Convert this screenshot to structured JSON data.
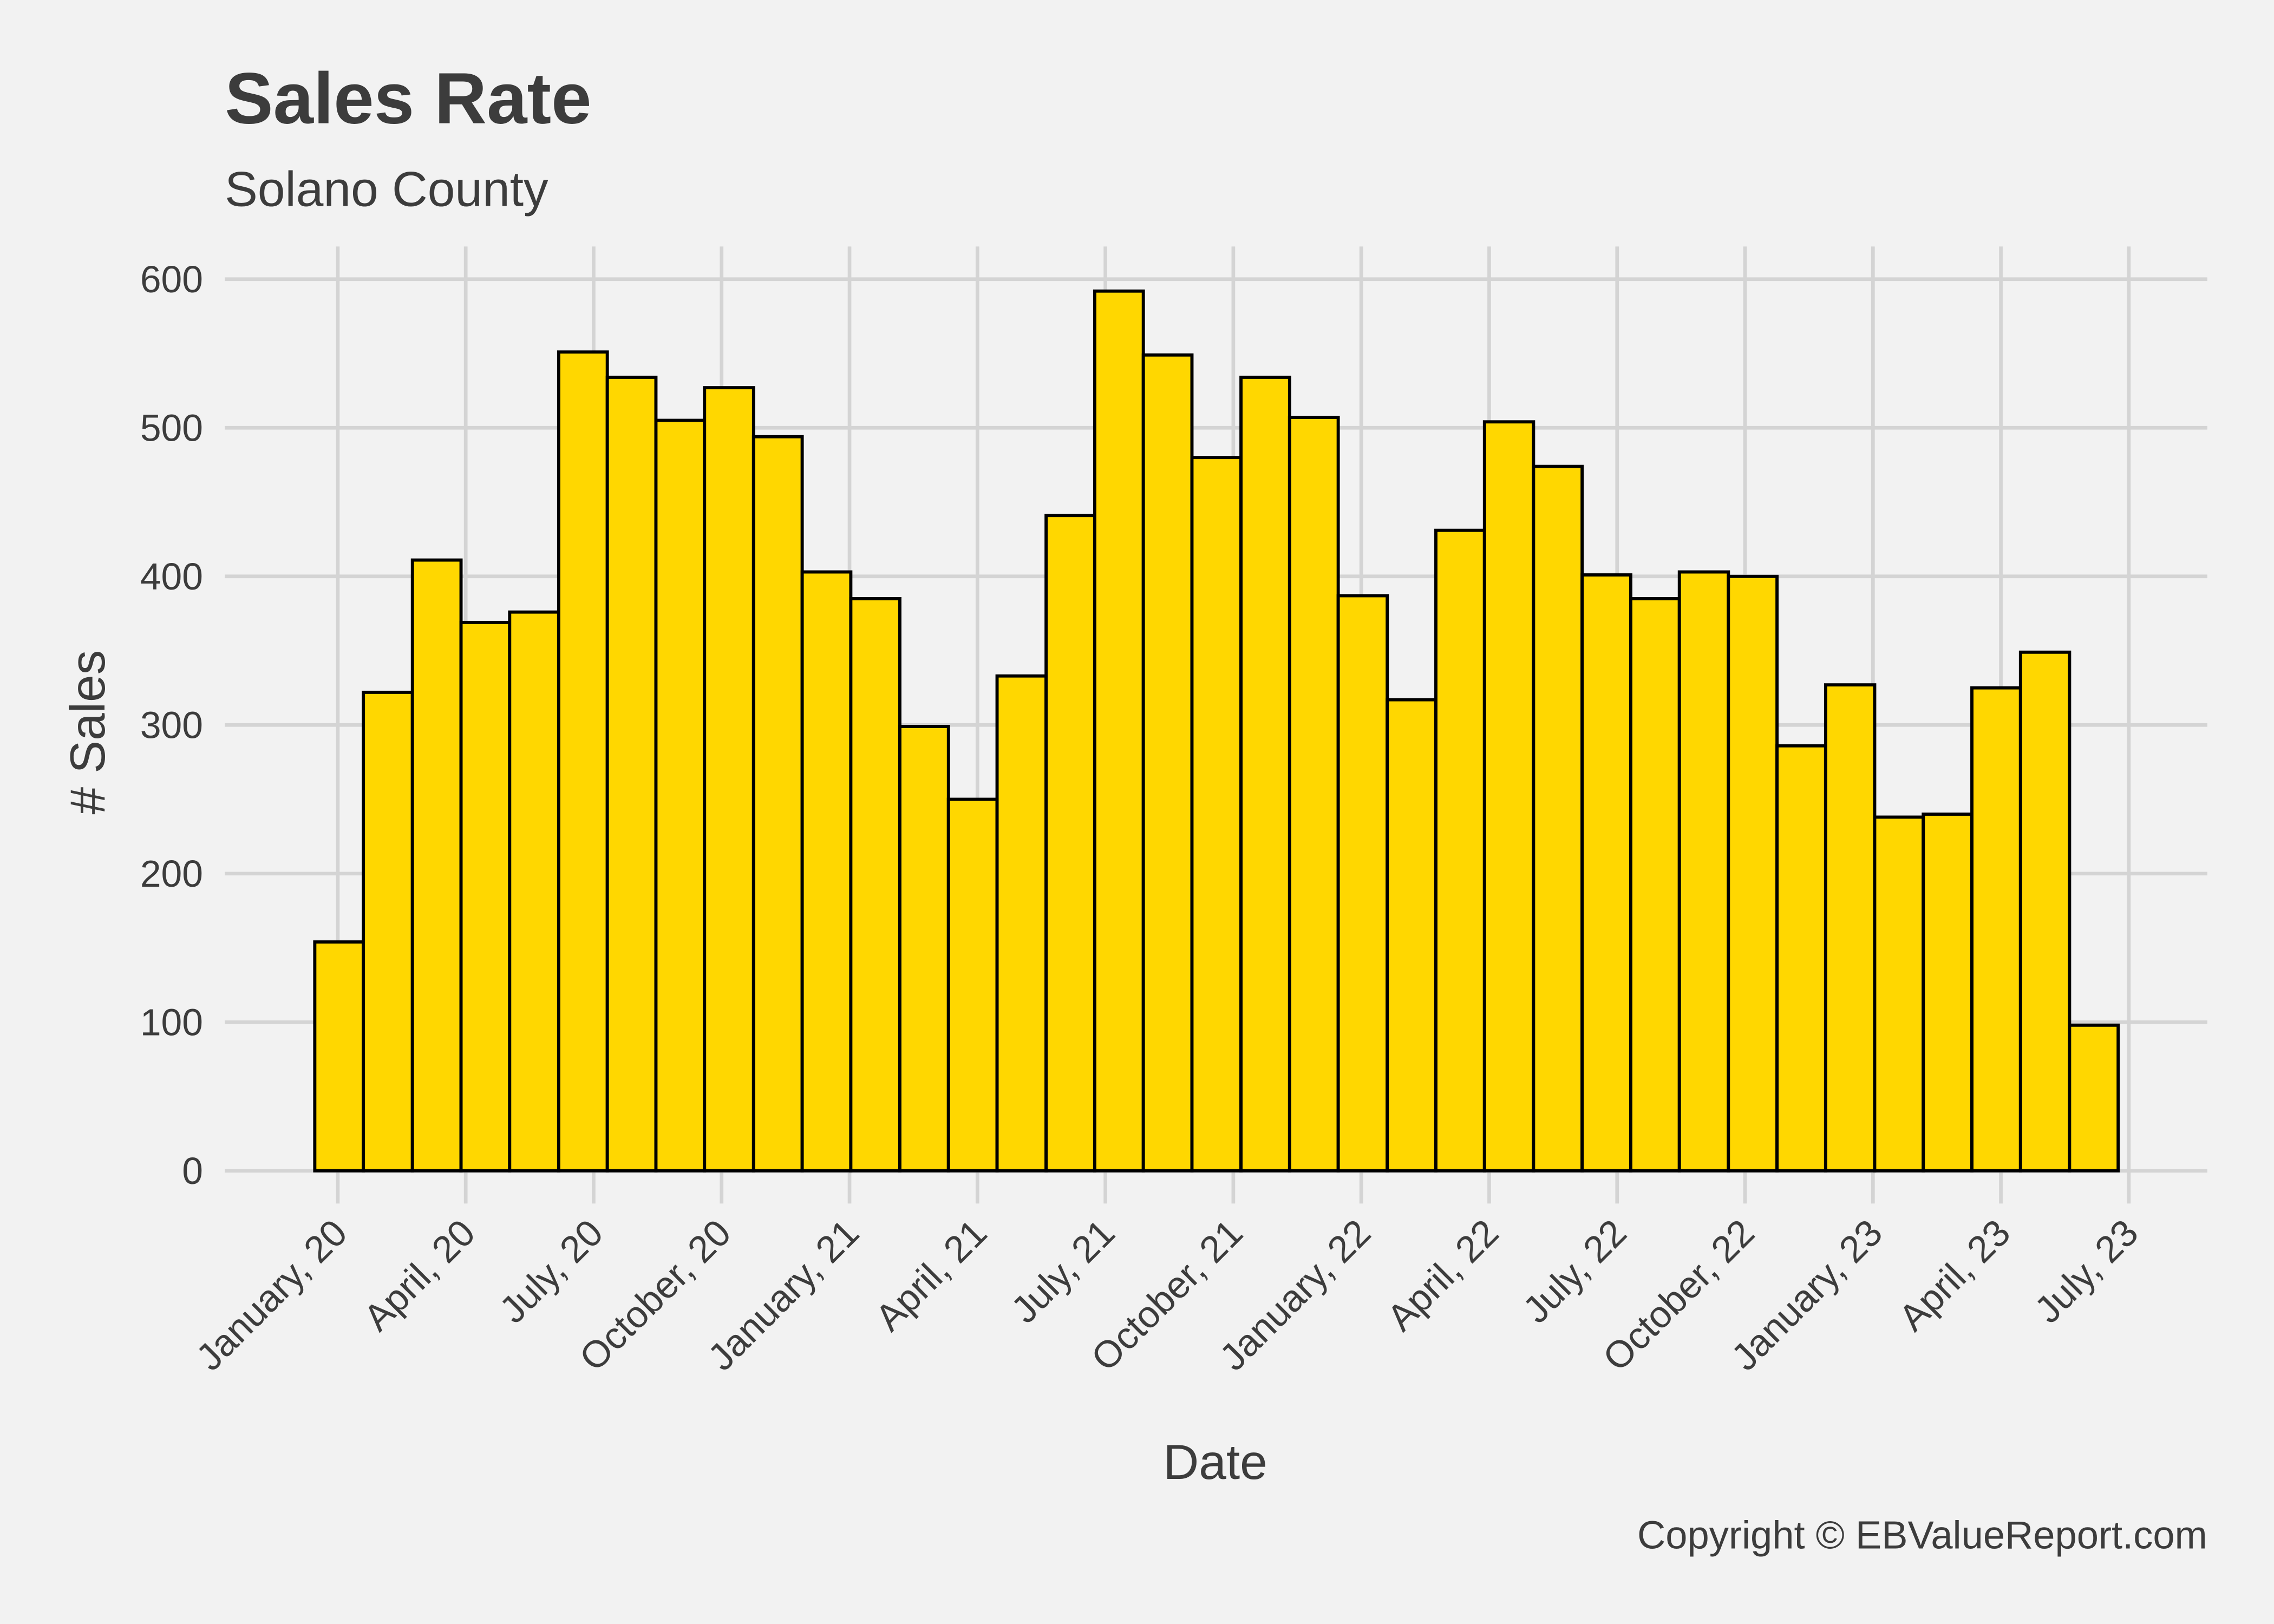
{
  "chart_data": {
    "type": "histogram",
    "title": "Sales Rate",
    "subtitle": "Solano County",
    "xlabel": "Date",
    "ylabel": "# Sales",
    "caption": "Copyright  © EBValueReport.com",
    "color": "#ffd700",
    "edgecolor": "#000000",
    "grid": true,
    "bins": [
      -0.54,
      0.6,
      1.75,
      2.89,
      4.03,
      5.18,
      6.32,
      7.46,
      8.6,
      9.75,
      10.89,
      12.03,
      13.18,
      14.32,
      15.46,
      16.61,
      17.75,
      18.89,
      20.03,
      21.18,
      22.32,
      23.46,
      24.61,
      25.75,
      26.89,
      28.04,
      29.18,
      30.32,
      31.46,
      32.61,
      33.75,
      34.89,
      36.04,
      37.18,
      38.32,
      39.46,
      40.61,
      41.75
    ],
    "values": [
      154,
      322,
      411,
      369,
      376,
      551,
      534,
      505,
      527,
      494,
      403,
      385,
      299,
      250,
      333,
      441,
      592,
      549,
      480,
      534,
      507,
      387,
      317,
      431,
      504,
      474,
      401,
      385,
      403,
      400,
      286,
      327,
      238,
      240,
      325,
      349,
      98
    ],
    "xlim": [
      -2.65,
      43.84
    ],
    "xticks": [
      {
        "value": 0,
        "label": "January, 20"
      },
      {
        "value": 3,
        "label": "April, 20"
      },
      {
        "value": 6,
        "label": "July, 20"
      },
      {
        "value": 9,
        "label": "October, 20"
      },
      {
        "value": 12,
        "label": "January, 21"
      },
      {
        "value": 15,
        "label": "April, 21"
      },
      {
        "value": 18,
        "label": "July, 21"
      },
      {
        "value": 21,
        "label": "October, 21"
      },
      {
        "value": 24,
        "label": "January, 22"
      },
      {
        "value": 27,
        "label": "April, 22"
      },
      {
        "value": 30,
        "label": "July, 22"
      },
      {
        "value": 33,
        "label": "October, 22"
      },
      {
        "value": 36,
        "label": "January, 23"
      },
      {
        "value": 39,
        "label": "April, 23"
      },
      {
        "value": 42,
        "label": "July, 23"
      }
    ],
    "ylim": [
      -22,
      622
    ],
    "yticks": [
      0,
      100,
      200,
      300,
      400,
      500,
      600
    ]
  }
}
